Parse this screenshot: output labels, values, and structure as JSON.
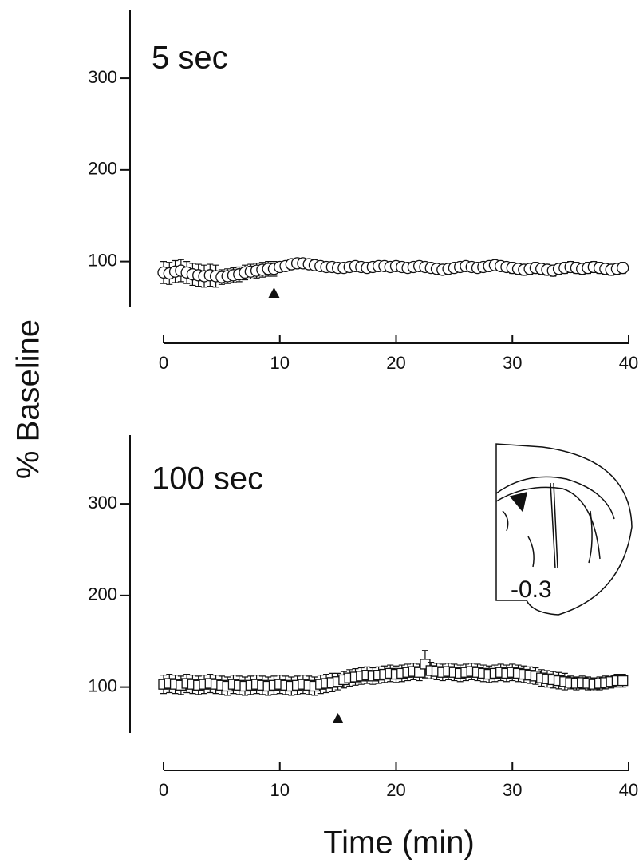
{
  "figure": {
    "y_label": "% Baseline",
    "x_label": "Time (min)"
  },
  "chart_data": [
    {
      "type": "scatter",
      "title": "5 sec",
      "marker": "circle",
      "color": "#111",
      "x": [
        0,
        0.5,
        1,
        1.5,
        2,
        2.5,
        3,
        3.5,
        4,
        4.5,
        5,
        5.5,
        6,
        6.5,
        7,
        7.5,
        8,
        8.5,
        9,
        9.5,
        10,
        10.5,
        11,
        11.5,
        12,
        12.5,
        13,
        13.5,
        14,
        14.5,
        15,
        15.5,
        16,
        16.5,
        17,
        17.5,
        18,
        18.5,
        19,
        19.5,
        20,
        20.5,
        21,
        21.5,
        22,
        22.5,
        23,
        23.5,
        24,
        24.5,
        25,
        25.5,
        26,
        26.5,
        27,
        27.5,
        28,
        28.5,
        29,
        29.5,
        30,
        30.5,
        31,
        31.5,
        32,
        32.5,
        33,
        33.5,
        34,
        34.5,
        35,
        35.5,
        36,
        36.5,
        37,
        37.5,
        38,
        38.5,
        39,
        39.5
      ],
      "values": [
        88,
        87,
        89,
        90,
        88,
        86,
        85,
        84,
        85,
        84,
        83,
        84,
        85,
        86,
        88,
        89,
        90,
        91,
        92,
        92,
        94,
        95,
        97,
        98,
        98,
        97,
        96,
        95,
        94,
        94,
        93,
        93,
        94,
        95,
        94,
        93,
        94,
        95,
        95,
        94,
        95,
        94,
        93,
        94,
        95,
        94,
        93,
        92,
        91,
        92,
        93,
        94,
        95,
        94,
        93,
        94,
        95,
        96,
        95,
        94,
        93,
        92,
        91,
        92,
        93,
        92,
        91,
        90,
        92,
        93,
        94,
        93,
        92,
        93,
        94,
        93,
        92,
        91,
        92,
        93
      ],
      "errors": [
        12,
        12,
        12,
        12,
        12,
        12,
        12,
        12,
        12,
        12,
        8,
        8,
        8,
        8,
        8,
        8,
        8,
        8,
        8,
        8,
        5,
        5,
        5,
        5,
        5,
        5,
        5,
        5,
        5,
        5,
        5,
        5,
        5,
        5,
        5,
        5,
        5,
        5,
        5,
        5,
        5,
        5,
        5,
        5,
        5,
        5,
        5,
        5,
        5,
        5,
        5,
        5,
        5,
        5,
        5,
        5,
        5,
        5,
        5,
        5,
        6,
        6,
        6,
        6,
        6,
        6,
        6,
        6,
        6,
        6,
        6,
        6,
        6,
        6,
        6,
        6,
        6,
        6,
        6,
        6
      ],
      "marker_x": 9.5,
      "xlim": [
        0,
        40
      ],
      "xticks": [
        0,
        10,
        20,
        30,
        40
      ],
      "ylim": [
        50,
        375
      ],
      "yticks": [
        100,
        200,
        300
      ]
    },
    {
      "type": "scatter",
      "title": "100 sec",
      "marker": "square",
      "color": "#111",
      "inset_label": "-0.3",
      "x": [
        0,
        0.5,
        1,
        1.5,
        2,
        2.5,
        3,
        3.5,
        4,
        4.5,
        5,
        5.5,
        6,
        6.5,
        7,
        7.5,
        8,
        8.5,
        9,
        9.5,
        10,
        10.5,
        11,
        11.5,
        12,
        12.5,
        13,
        13.5,
        14,
        14.5,
        15,
        15.5,
        16,
        16.5,
        17,
        17.5,
        18,
        18.5,
        19,
        19.5,
        20,
        20.5,
        21,
        21.5,
        22,
        22.5,
        23,
        23.5,
        24,
        24.5,
        25,
        25.5,
        26,
        26.5,
        27,
        27.5,
        28,
        28.5,
        29,
        29.5,
        30,
        30.5,
        31,
        31.5,
        32,
        32.5,
        33,
        33.5,
        34,
        34.5,
        35,
        35.5,
        36,
        36.5,
        37,
        37.5,
        38,
        38.5,
        39,
        39.5
      ],
      "values": [
        103,
        104,
        103,
        102,
        104,
        103,
        102,
        103,
        104,
        103,
        102,
        101,
        103,
        102,
        101,
        102,
        103,
        102,
        101,
        102,
        103,
        102,
        101,
        102,
        103,
        102,
        101,
        103,
        104,
        105,
        106,
        108,
        110,
        111,
        112,
        113,
        112,
        113,
        114,
        115,
        114,
        115,
        116,
        117,
        116,
        125,
        118,
        117,
        116,
        117,
        116,
        115,
        116,
        117,
        116,
        115,
        114,
        115,
        116,
        115,
        116,
        115,
        114,
        113,
        112,
        110,
        109,
        108,
        107,
        106,
        105,
        104,
        105,
        104,
        103,
        104,
        105,
        106,
        107,
        107
      ],
      "errors": [
        10,
        10,
        10,
        10,
        10,
        10,
        10,
        10,
        10,
        10,
        10,
        10,
        10,
        10,
        10,
        10,
        10,
        10,
        10,
        10,
        10,
        10,
        10,
        10,
        10,
        10,
        10,
        10,
        10,
        10,
        9,
        9,
        9,
        9,
        9,
        9,
        9,
        9,
        9,
        9,
        9,
        9,
        9,
        9,
        9,
        15,
        9,
        9,
        9,
        9,
        9,
        9,
        9,
        9,
        9,
        9,
        9,
        9,
        9,
        9,
        9,
        9,
        9,
        9,
        9,
        9,
        9,
        9,
        9,
        9,
        7,
        7,
        7,
        7,
        7,
        7,
        7,
        7,
        7,
        7
      ],
      "marker_x": 15,
      "xlim": [
        0,
        40
      ],
      "xticks": [
        0,
        10,
        20,
        30,
        40
      ],
      "ylim": [
        50,
        375
      ],
      "yticks": [
        100,
        200,
        300
      ]
    }
  ]
}
